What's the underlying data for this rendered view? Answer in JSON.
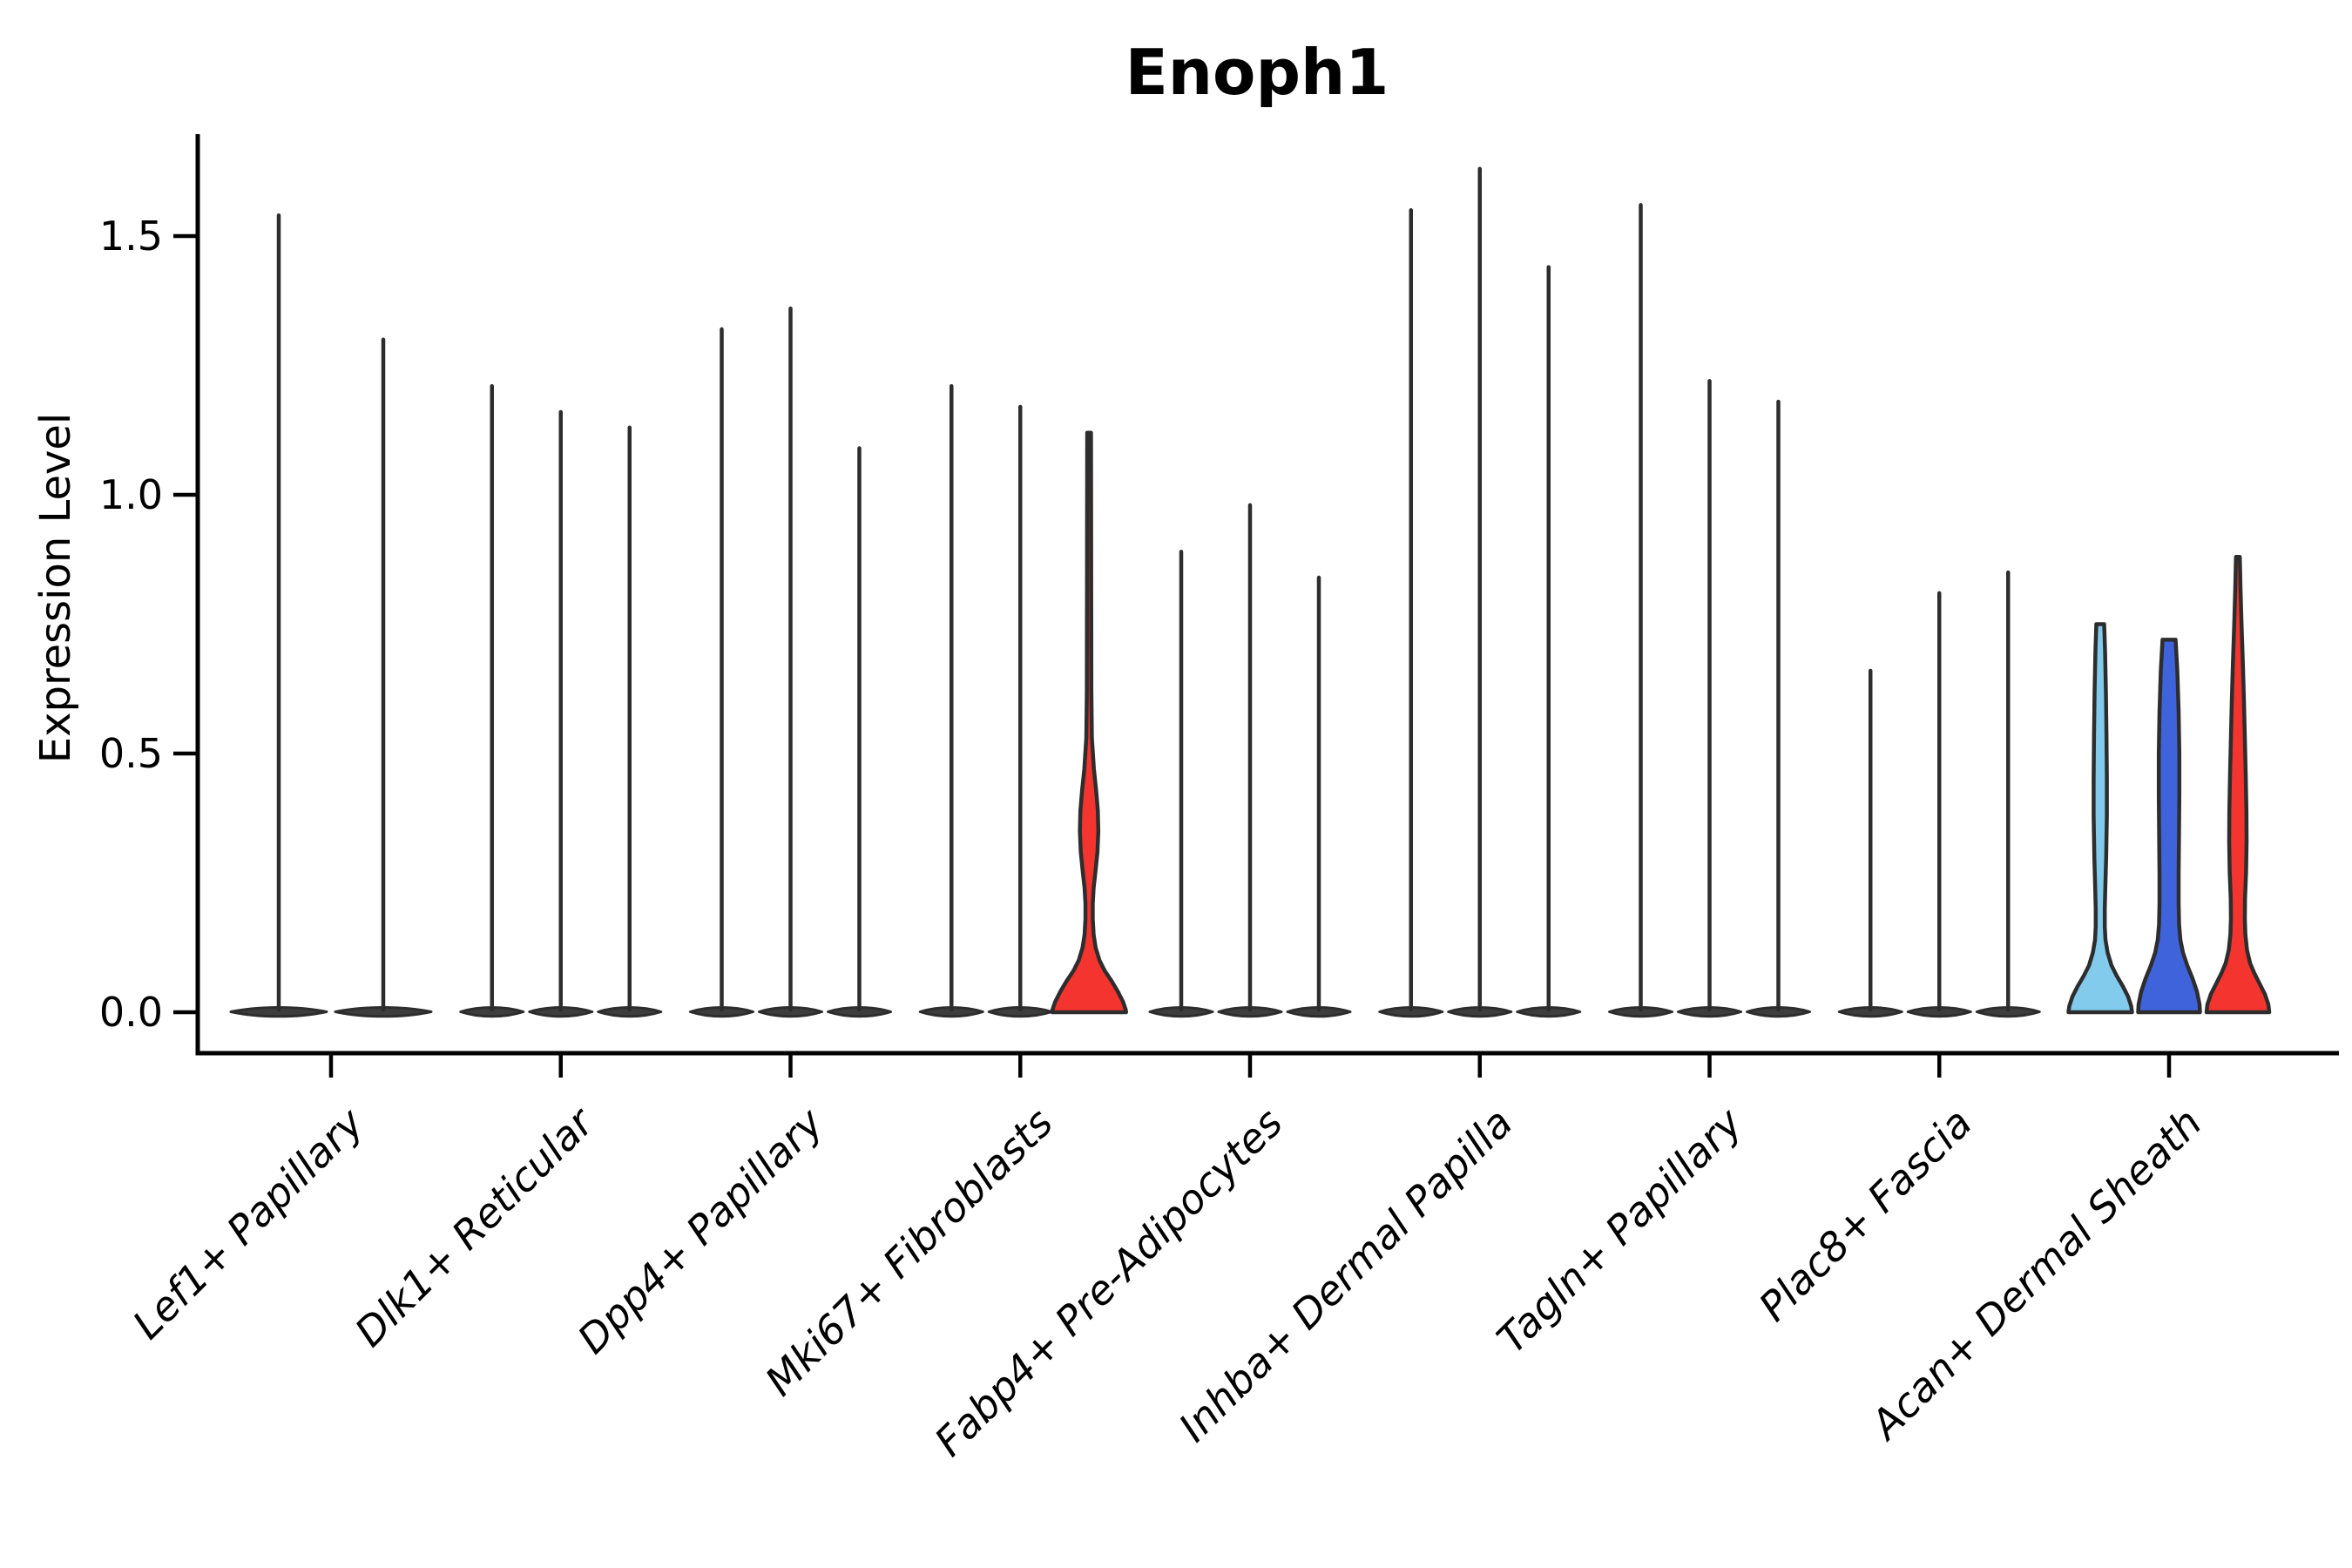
{
  "chart_data": {
    "type": "violin",
    "title": "Enoph1",
    "ylabel": "Expression Level",
    "xlabel": "",
    "grid": false,
    "legend": "none",
    "ylim": [
      0,
      1.7
    ],
    "yticks": [
      {
        "label": "0.0",
        "value": 0.0
      },
      {
        "label": "0.5",
        "value": 0.5
      },
      {
        "label": "1.0",
        "value": 1.0
      },
      {
        "label": "1.5",
        "value": 1.5
      }
    ],
    "categories": [
      "Lef1+ Papillary",
      "Dlk1+ Reticular",
      "Dpp4+ Papillary",
      "Mki67+ Fibroblasts",
      "Fabp4+ Pre-Adipocytes",
      "Inhba+ Dermal Papilla",
      "Tagln+ Papillary",
      "Plac8+ Fascia",
      "Acan+ Dermal Sheath"
    ],
    "palette": {
      "dark": "#3d3d3d",
      "outline": "#2d2d2d",
      "red": "#f4342e",
      "lightblue": "#82cbec",
      "blue": "#3e63db",
      "axis": "#000000"
    },
    "violins": [
      {
        "cat": 0,
        "offset": -60,
        "style": "spike",
        "color": "dark",
        "max": 1.54,
        "base_hw": 55
      },
      {
        "cat": 0,
        "offset": 60,
        "style": "spike",
        "color": "dark",
        "max": 1.3,
        "base_hw": 55
      },
      {
        "cat": 1,
        "offset": -79,
        "style": "spike",
        "color": "dark",
        "max": 1.21,
        "base_hw": 36
      },
      {
        "cat": 1,
        "offset": 0,
        "style": "spike",
        "color": "dark",
        "max": 1.16,
        "base_hw": 36
      },
      {
        "cat": 1,
        "offset": 79,
        "style": "spike",
        "color": "dark",
        "max": 1.13,
        "base_hw": 36
      },
      {
        "cat": 2,
        "offset": -79,
        "style": "spike",
        "color": "dark",
        "max": 1.32,
        "base_hw": 36
      },
      {
        "cat": 2,
        "offset": 0,
        "style": "spike",
        "color": "dark",
        "max": 1.36,
        "base_hw": 36
      },
      {
        "cat": 2,
        "offset": 79,
        "style": "spike",
        "color": "dark",
        "max": 1.09,
        "base_hw": 36
      },
      {
        "cat": 3,
        "offset": -79,
        "style": "spike",
        "color": "dark",
        "max": 1.21,
        "base_hw": 36
      },
      {
        "cat": 3,
        "offset": 0,
        "style": "spike",
        "color": "dark",
        "max": 1.17,
        "base_hw": 36
      },
      {
        "cat": 3,
        "offset": 79,
        "style": "profile",
        "color": "red",
        "max": 1.12,
        "profile": [
          [
            1.12,
            2.2
          ],
          [
            0.62,
            2.6
          ],
          [
            0.53,
            3.2
          ],
          [
            0.47,
            5.5
          ],
          [
            0.43,
            8
          ],
          [
            0.39,
            10
          ],
          [
            0.35,
            10.6
          ],
          [
            0.31,
            9.6
          ],
          [
            0.27,
            7.2
          ],
          [
            0.24,
            5.2
          ],
          [
            0.21,
            4.2
          ],
          [
            0.18,
            4.2
          ],
          [
            0.15,
            5.2
          ],
          [
            0.125,
            7.5
          ],
          [
            0.1,
            12
          ],
          [
            0.08,
            18
          ],
          [
            0.06,
            26
          ],
          [
            0.04,
            33
          ],
          [
            0.02,
            39
          ],
          [
            0.005,
            42
          ],
          [
            0,
            42.5
          ]
        ]
      },
      {
        "cat": 4,
        "offset": -79,
        "style": "spike",
        "color": "dark",
        "max": 0.89,
        "base_hw": 36
      },
      {
        "cat": 4,
        "offset": 0,
        "style": "spike",
        "color": "dark",
        "max": 0.98,
        "base_hw": 36
      },
      {
        "cat": 4,
        "offset": 79,
        "style": "spike",
        "color": "dark",
        "max": 0.84,
        "base_hw": 36
      },
      {
        "cat": 5,
        "offset": -79,
        "style": "spike",
        "color": "dark",
        "max": 1.55,
        "base_hw": 36
      },
      {
        "cat": 5,
        "offset": 0,
        "style": "spike",
        "color": "dark",
        "max": 1.63,
        "base_hw": 36
      },
      {
        "cat": 5,
        "offset": 79,
        "style": "spike",
        "color": "dark",
        "max": 1.44,
        "base_hw": 36
      },
      {
        "cat": 6,
        "offset": -79,
        "style": "spike",
        "color": "dark",
        "max": 1.56,
        "base_hw": 36
      },
      {
        "cat": 6,
        "offset": 0,
        "style": "spike",
        "color": "dark",
        "max": 1.22,
        "base_hw": 36
      },
      {
        "cat": 6,
        "offset": 79,
        "style": "spike",
        "color": "dark",
        "max": 1.18,
        "base_hw": 36
      },
      {
        "cat": 7,
        "offset": -79,
        "style": "spike",
        "color": "dark",
        "max": 0.66,
        "base_hw": 36
      },
      {
        "cat": 7,
        "offset": 0,
        "style": "spike",
        "color": "dark",
        "max": 0.81,
        "base_hw": 36
      },
      {
        "cat": 7,
        "offset": 79,
        "style": "spike",
        "color": "dark",
        "max": 0.85,
        "base_hw": 36
      },
      {
        "cat": 8,
        "offset": -79,
        "style": "profile",
        "color": "lightblue",
        "max": 0.75,
        "profile": [
          [
            0.75,
            4.5
          ],
          [
            0.7,
            5.5
          ],
          [
            0.62,
            6.5
          ],
          [
            0.53,
            7.2
          ],
          [
            0.45,
            7.6
          ],
          [
            0.38,
            7.6
          ],
          [
            0.3,
            6.8
          ],
          [
            0.24,
            5.8
          ],
          [
            0.2,
            5.2
          ],
          [
            0.165,
            5.2
          ],
          [
            0.14,
            6
          ],
          [
            0.115,
            8.5
          ],
          [
            0.09,
            13
          ],
          [
            0.07,
            19
          ],
          [
            0.05,
            26
          ],
          [
            0.03,
            32
          ],
          [
            0.012,
            35.5
          ],
          [
            0,
            36.5
          ]
        ]
      },
      {
        "cat": 8,
        "offset": 0,
        "style": "profile",
        "color": "blue",
        "max": 0.72,
        "profile": [
          [
            0.72,
            7.5
          ],
          [
            0.66,
            9.5
          ],
          [
            0.58,
            11
          ],
          [
            0.5,
            11.8
          ],
          [
            0.42,
            11.8
          ],
          [
            0.34,
            11.4
          ],
          [
            0.27,
            11
          ],
          [
            0.21,
            11
          ],
          [
            0.17,
            11.5
          ],
          [
            0.14,
            13
          ],
          [
            0.115,
            16
          ],
          [
            0.09,
            21
          ],
          [
            0.065,
            27
          ],
          [
            0.04,
            32
          ],
          [
            0.015,
            35
          ],
          [
            0,
            35.5
          ]
        ]
      },
      {
        "cat": 8,
        "offset": 79,
        "style": "profile",
        "color": "red",
        "max": 0.88,
        "profile": [
          [
            0.88,
            2.2
          ],
          [
            0.82,
            3
          ],
          [
            0.75,
            4.2
          ],
          [
            0.67,
            5.8
          ],
          [
            0.6,
            7
          ],
          [
            0.53,
            8
          ],
          [
            0.46,
            9
          ],
          [
            0.39,
            9.8
          ],
          [
            0.33,
            10
          ],
          [
            0.27,
            9.4
          ],
          [
            0.22,
            8.2
          ],
          [
            0.18,
            8
          ],
          [
            0.15,
            8.6
          ],
          [
            0.12,
            10.5
          ],
          [
            0.095,
            14
          ],
          [
            0.075,
            19
          ],
          [
            0.055,
            25
          ],
          [
            0.035,
            31
          ],
          [
            0.015,
            35
          ],
          [
            0,
            36
          ]
        ]
      }
    ]
  }
}
